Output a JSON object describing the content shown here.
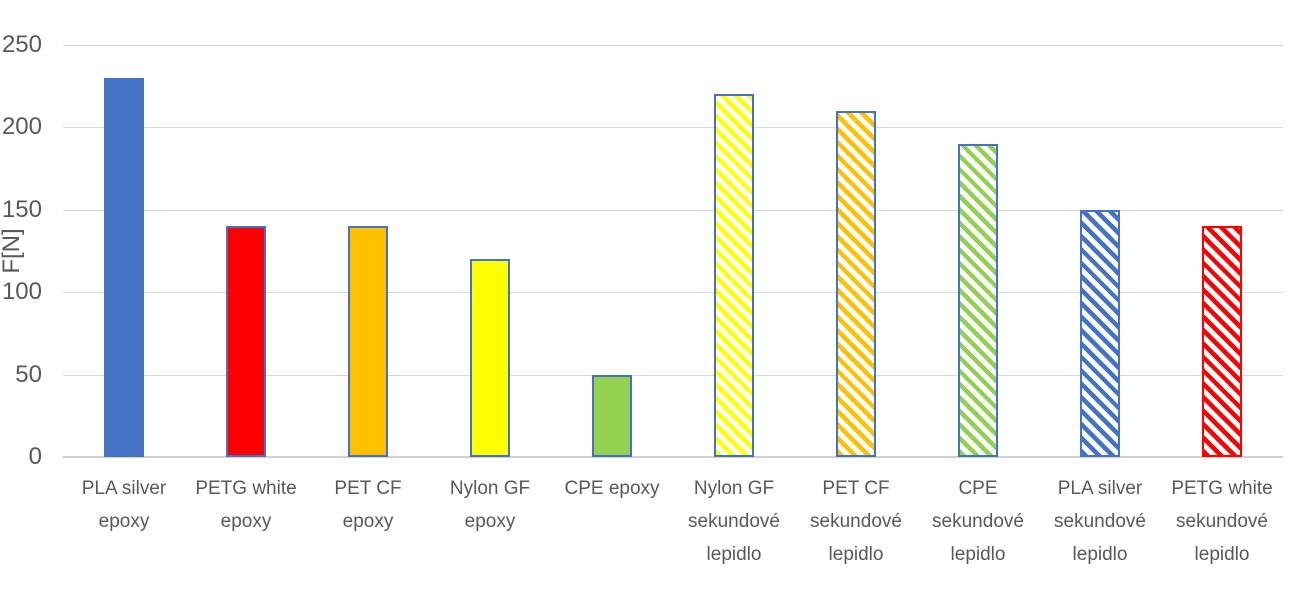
{
  "chart_data": {
    "type": "bar",
    "title": "",
    "xlabel": "",
    "ylabel": "F[N]",
    "ylim": [
      0,
      250
    ],
    "yticks": [
      0,
      50,
      100,
      150,
      200,
      250
    ],
    "grid": true,
    "legend": "none",
    "categories": [
      "PLA silver\nepoxy",
      "PETG white\nepoxy",
      "PET CF\nepoxy",
      "Nylon GF\nepoxy",
      "CPE epoxy",
      "Nylon GF\nsekundové\nlepidlo",
      "PET CF\nsekundové\nlepidlo",
      "CPE\nsekundové\nlepidlo",
      "PLA silver\nsekundové\nlepidlo",
      "PETG white\nsekundové\nlepidlo"
    ],
    "values": [
      230,
      140,
      140,
      120,
      50,
      220,
      210,
      190,
      150,
      140
    ],
    "bar_styles": [
      {
        "fill": "#4472C4",
        "border": "#4472C4",
        "hatch": false
      },
      {
        "fill": "#FF0000",
        "border": "#4472C4",
        "hatch": false
      },
      {
        "fill": "#FFC000",
        "border": "#4472C4",
        "hatch": false
      },
      {
        "fill": "#FFFF00",
        "border": "#4472C4",
        "hatch": false
      },
      {
        "fill": "#92D050",
        "border": "#4472C4",
        "hatch": false
      },
      {
        "fill": "#FFFF00",
        "border": "#4472C4",
        "hatch": true
      },
      {
        "fill": "#FFC000",
        "border": "#4472C4",
        "hatch": true
      },
      {
        "fill": "#92D050",
        "border": "#4472C4",
        "hatch": true
      },
      {
        "fill": "#4472C4",
        "border": "#4472C4",
        "hatch": true
      },
      {
        "fill": "#FF0000",
        "border": "#FF0000",
        "hatch": true
      }
    ],
    "colors": {
      "tick_text": "#595959",
      "gridline": "#d9d9d9",
      "axis_line": "#d0d0d0",
      "background": "#ffffff"
    }
  }
}
